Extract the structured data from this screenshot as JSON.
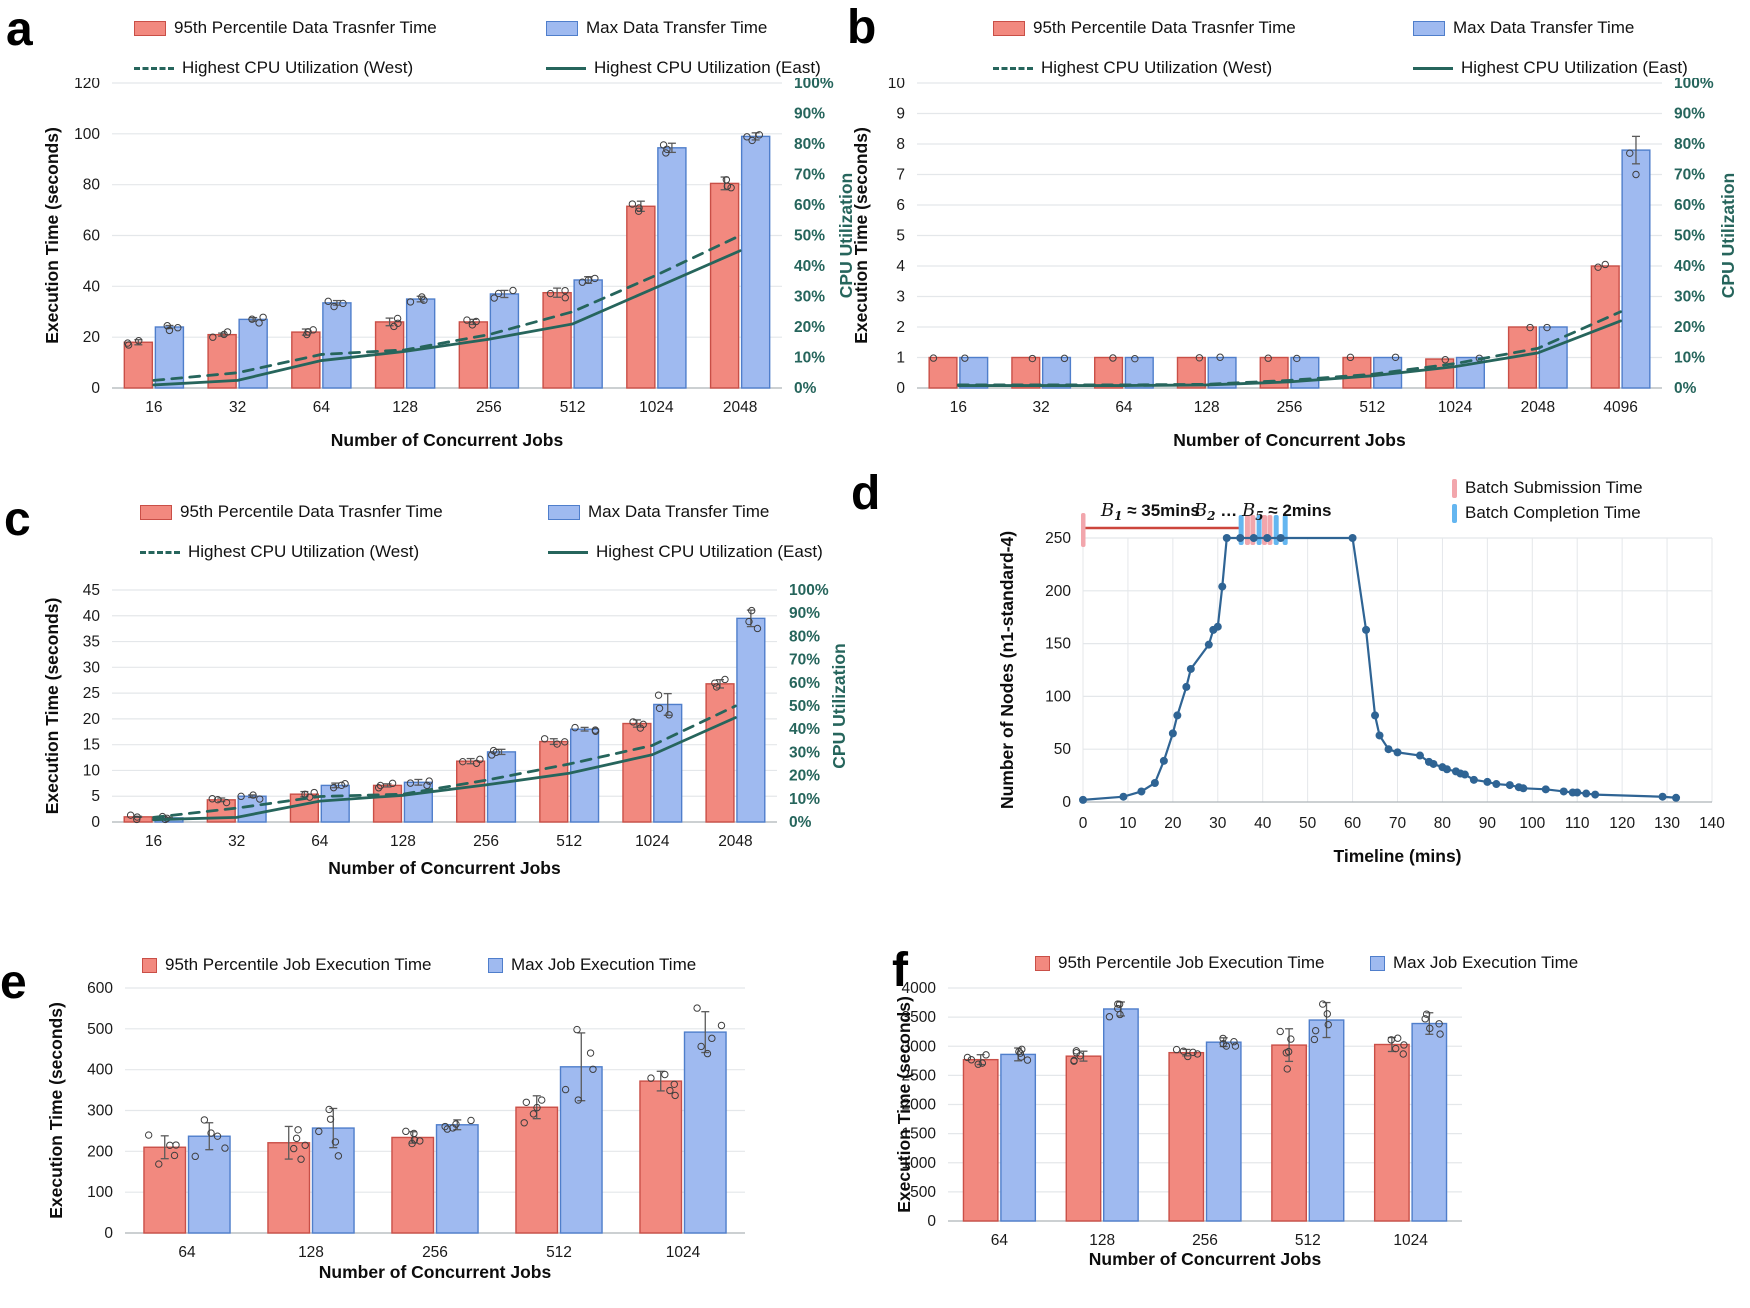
{
  "colors": {
    "bar_red_fill": "#F2897F",
    "bar_red_stroke": "#C94F47",
    "bar_blue_fill": "#9FBAF0",
    "bar_blue_stroke": "#4F7ECB",
    "teal_line": "#26655C",
    "node_line": "#2F6494",
    "batch_submission_pink": "#F2A6AC",
    "batch_completion_blue": "#64B6F0",
    "batch_span_red": "#CC453C",
    "grid": "#E4E7EA",
    "baseline": "#ADB3B8",
    "scatter_stroke": "#3f3f3f",
    "errorbar": "#5a5a5a"
  },
  "chart_data": [
    {
      "id": "a",
      "type": "bar",
      "letter": "a",
      "xlabel": "Number of Concurrent Jobs",
      "ylabel": "Execution Time (seconds)",
      "y2label": "CPU Utilization",
      "ylim": [
        0,
        120
      ],
      "ystep": 20,
      "y2lim": [
        0,
        100
      ],
      "y2step": 10,
      "categories": [
        "16",
        "32",
        "64",
        "128",
        "256",
        "512",
        "1024",
        "2048"
      ],
      "legend_bars": [
        {
          "label": "95th Percentile Data Trasnfer Time"
        },
        {
          "label": "Max Data Transfer Time"
        }
      ],
      "legend_lines": [
        {
          "label": "Highest CPU Utilization (West)",
          "dash": true
        },
        {
          "label": "Highest CPU Utilization (East)",
          "dash": false
        }
      ],
      "series": [
        {
          "name": "95th Percentile Data Trasnfer Time",
          "values": [
            18,
            21,
            22,
            26,
            26,
            37.5,
            71.5,
            80.5
          ],
          "err": [
            1,
            0.6,
            1.2,
            1.5,
            1,
            1.8,
            2,
            2.5
          ]
        },
        {
          "name": "Max Data Transfer Time",
          "values": [
            24,
            27,
            33.5,
            35,
            37,
            42.5,
            94.5,
            99
          ],
          "err": [
            0.6,
            0.7,
            0.9,
            1.1,
            1.4,
            1.3,
            1.8,
            1.4
          ]
        }
      ],
      "cpu_lines": [
        {
          "name": "Highest CPU Utilization (West)",
          "style": "dashed",
          "percent": [
            2.5,
            5,
            11,
            12.5,
            17.5,
            25,
            37,
            50
          ]
        },
        {
          "name": "Highest CPU Utilization (East)",
          "style": "solid",
          "percent": [
            1,
            2.5,
            9,
            12,
            16,
            21,
            33,
            45
          ]
        }
      ],
      "scatter_n": 3
    },
    {
      "id": "b",
      "type": "bar",
      "letter": "b",
      "xlabel": "Number of Concurrent Jobs",
      "ylabel": "Execution Time (seconds)",
      "y2label": "CPU Utilization",
      "ylim": [
        0,
        10
      ],
      "ystep": 1,
      "y2lim": [
        0,
        100
      ],
      "y2step": 10,
      "categories": [
        "16",
        "32",
        "64",
        "128",
        "256",
        "512",
        "1024",
        "2048",
        "4096"
      ],
      "legend_bars": [
        {
          "label": "95th Percentile Data Trasnfer Time"
        },
        {
          "label": "Max Data Transfer Time"
        }
      ],
      "legend_lines": [
        {
          "label": "Highest CPU Utilization (West)",
          "dash": true
        },
        {
          "label": "Highest CPU Utilization (East)",
          "dash": false
        }
      ],
      "series": [
        {
          "name": "95th Percentile Data Trasnfer Time",
          "values": [
            1,
            1,
            1,
            1,
            1,
            1,
            0.95,
            2,
            4
          ],
          "err": [
            0,
            0,
            0,
            0,
            0,
            0,
            0,
            0,
            0
          ]
        },
        {
          "name": "Max Data Transfer Time",
          "values": [
            1,
            1,
            1,
            1,
            1,
            1,
            1,
            2,
            7.8
          ],
          "err": [
            0,
            0,
            0,
            0,
            0,
            0,
            0,
            0,
            0.45
          ]
        }
      ],
      "cpu_lines": [
        {
          "name": "Highest CPU Utilization (West)",
          "style": "dashed",
          "percent": [
            1,
            1,
            1,
            1.2,
            2.5,
            4.5,
            8,
            13,
            25
          ]
        },
        {
          "name": "Highest CPU Utilization (East)",
          "style": "solid",
          "percent": [
            0.8,
            0.8,
            0.8,
            1,
            2,
            4,
            7,
            11.5,
            22
          ]
        }
      ],
      "scatter_n": 1,
      "extra_scatter": [
        {
          "i": 8,
          "s": 1,
          "v": 7.0
        },
        {
          "i": 8,
          "s": 0,
          "v": 4.05
        }
      ]
    },
    {
      "id": "c",
      "type": "bar",
      "letter": "c",
      "xlabel": "Number of Concurrent Jobs",
      "ylabel": "Execution Time (seconds)",
      "y2label": "CPU Utilization",
      "ylim": [
        0,
        45
      ],
      "ystep": 5,
      "y2lim": [
        0,
        100
      ],
      "y2step": 10,
      "categories": [
        "16",
        "32",
        "64",
        "128",
        "256",
        "512",
        "1024",
        "2048"
      ],
      "legend_bars": [
        {
          "label": "95th Percentile Data Trasnfer Time"
        },
        {
          "label": "Max Data Transfer Time"
        }
      ],
      "legend_lines": [
        {
          "label": "Highest CPU Utilization (West)",
          "dash": true
        },
        {
          "label": "Highest CPU Utilization (East)",
          "dash": false
        }
      ],
      "series": [
        {
          "name": "95th Percentile Data Trasnfer Time",
          "values": [
            1,
            4.3,
            5.4,
            7.1,
            11.8,
            15.6,
            19.1,
            26.8
          ],
          "err": [
            0.1,
            0.35,
            0.5,
            0.3,
            0.5,
            0.55,
            0.7,
            0.8
          ]
        },
        {
          "name": "Max Data Transfer Time",
          "values": [
            0.8,
            5,
            7.1,
            7.7,
            13.6,
            18,
            22.8,
            39.5
          ],
          "err": [
            0.1,
            0.25,
            0.45,
            0.55,
            0.5,
            0.35,
            2.1,
            1.6
          ]
        }
      ],
      "cpu_lines": [
        {
          "name": "Highest CPU Utilization (West)",
          "style": "dashed",
          "percent": [
            2,
            6,
            11,
            12,
            18,
            25,
            33,
            50
          ]
        },
        {
          "name": "Highest CPU Utilization (East)",
          "style": "solid",
          "percent": [
            1,
            2,
            9,
            11.5,
            16,
            21,
            29,
            45
          ]
        }
      ],
      "scatter_n": 3
    },
    {
      "id": "d",
      "type": "line",
      "letter": "d",
      "xlabel": "Timeline (mins)",
      "ylabel": "Number of Nodes (n1-standard-4)",
      "xlim": [
        0,
        140
      ],
      "xstep": 10,
      "ylim": [
        0,
        250
      ],
      "ystep": 50,
      "legend": [
        {
          "label": "Batch Submission Time",
          "kind": "submission"
        },
        {
          "label": "Batch Completion Time",
          "kind": "completion"
        }
      ],
      "ann1": {
        "b": "B",
        "sub": "1",
        "rest": " ≈ 35mins",
        "x_center": 15
      },
      "ann2": {
        "b1": "B",
        "sub1": "2",
        "mid": " … ",
        "b2": "B",
        "sub2": "5",
        "rest": " ≈ 2mins",
        "x_center": 40
      },
      "red_span": [
        0,
        35
      ],
      "batch_ticks": [
        {
          "x": 35.2,
          "kind": "completion"
        },
        {
          "x": 36.6,
          "kind": "submission"
        },
        {
          "x": 37.8,
          "kind": "submission"
        },
        {
          "x": 39.2,
          "kind": "completion"
        },
        {
          "x": 40.4,
          "kind": "submission"
        },
        {
          "x": 41.6,
          "kind": "submission"
        },
        {
          "x": 43.0,
          "kind": "completion"
        },
        {
          "x": 45.0,
          "kind": "completion"
        }
      ],
      "points": [
        [
          0,
          2
        ],
        [
          9,
          5
        ],
        [
          13,
          10
        ],
        [
          16,
          18
        ],
        [
          18,
          39
        ],
        [
          20,
          65
        ],
        [
          21,
          82
        ],
        [
          23,
          109
        ],
        [
          24,
          126
        ],
        [
          28,
          149
        ],
        [
          29,
          163
        ],
        [
          30,
          166
        ],
        [
          31,
          204
        ],
        [
          32,
          250
        ],
        [
          35,
          250
        ],
        [
          38,
          250
        ],
        [
          41,
          250
        ],
        [
          44,
          250
        ],
        [
          60,
          250
        ],
        [
          63,
          163
        ],
        [
          65,
          82
        ],
        [
          66,
          63
        ],
        [
          68,
          50
        ],
        [
          70,
          47
        ],
        [
          75,
          44
        ],
        [
          77,
          38
        ],
        [
          78,
          36
        ],
        [
          80,
          33
        ],
        [
          81,
          31
        ],
        [
          83,
          29
        ],
        [
          84,
          27
        ],
        [
          85,
          26
        ],
        [
          87,
          21
        ],
        [
          90,
          19
        ],
        [
          92,
          17
        ],
        [
          95,
          16
        ],
        [
          97,
          14
        ],
        [
          98,
          13
        ],
        [
          103,
          12
        ],
        [
          107,
          10
        ],
        [
          109,
          9
        ],
        [
          110,
          9
        ],
        [
          112,
          8
        ],
        [
          114,
          7
        ],
        [
          129,
          5
        ],
        [
          132,
          4
        ]
      ]
    },
    {
      "id": "e",
      "type": "bar",
      "letter": "e",
      "xlabel": "Number of Concurrent Jobs",
      "ylabel": "Execution Time (seconds)",
      "ylim": [
        0,
        600
      ],
      "ystep": 100,
      "categories": [
        "64",
        "128",
        "256",
        "512",
        "1024"
      ],
      "legend_bars": [
        {
          "label": "95th Percentile Job Execution Time"
        },
        {
          "label": "Max Job Execution Time"
        }
      ],
      "legend_lines": [],
      "series": [
        {
          "name": "95th Percentile Job Execution Time",
          "values": [
            210,
            221,
            234,
            308,
            372
          ],
          "err": [
            28,
            40,
            14,
            28,
            24
          ]
        },
        {
          "name": "Max Job Execution Time",
          "values": [
            237,
            257,
            265,
            407,
            492
          ],
          "err": [
            33,
            48,
            12,
            83,
            50
          ]
        }
      ],
      "cpu_lines": [],
      "scatter_n": 5
    },
    {
      "id": "f",
      "type": "bar",
      "letter": "f",
      "xlabel": "Number of Concurrent Jobs",
      "ylabel": "Execution Time (seconds)",
      "ylim": [
        0,
        4000
      ],
      "ystep": 500,
      "categories": [
        "64",
        "128",
        "256",
        "512",
        "1024"
      ],
      "legend_bars": [
        {
          "label": "95th Percentile Job Execution Time"
        },
        {
          "label": "Max Job Execution Time"
        }
      ],
      "legend_lines": [],
      "series": [
        {
          "name": "95th Percentile Job Execution Time",
          "values": [
            2770,
            2830,
            2890,
            3020,
            3030
          ],
          "err": [
            85,
            85,
            55,
            280,
            120
          ]
        },
        {
          "name": "Max Job Execution Time",
          "values": [
            2860,
            3640,
            3070,
            3450,
            3390
          ],
          "err": [
            110,
            120,
            75,
            300,
            185
          ]
        }
      ],
      "cpu_lines": [],
      "scatter_n": 5
    }
  ]
}
